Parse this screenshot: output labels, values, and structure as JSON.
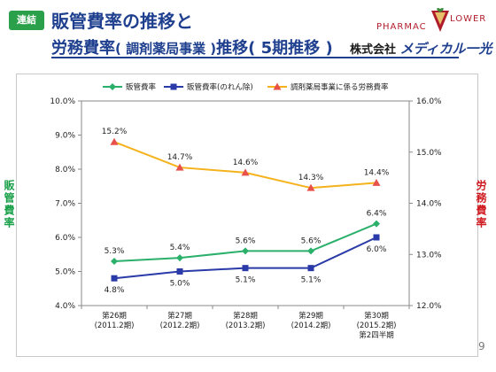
{
  "header": {
    "badge": "連結",
    "title_line1": "販管費率の推移と",
    "title_line2_a": "労務費率",
    "title_line2_b": "( 調剤薬局事業 )",
    "title_line2_c": "推移",
    "title_line2_d": "( 5期推移 )",
    "company_prefix": "株式会社",
    "company_name": "メディカル一光",
    "logo_text_a": "PHARMAC",
    "logo_text_b": "LOWER"
  },
  "side_labels": {
    "left": "販管費率",
    "right": "労務費率"
  },
  "page_number": "9",
  "chart_data": {
    "type": "line",
    "categories": [
      [
        "第26期",
        "(2011.2期)"
      ],
      [
        "第27期",
        "(2012.2期)"
      ],
      [
        "第28期",
        "(2013.2期)"
      ],
      [
        "第29期",
        "(2014.2期)"
      ],
      [
        "第30期",
        "(2015.2期)",
        "第2四半期"
      ]
    ],
    "left_axis": {
      "ylim": [
        4.0,
        10.0
      ],
      "ticks": [
        "4.0%",
        "5.0%",
        "6.0%",
        "7.0%",
        "8.0%",
        "9.0%",
        "10.0%"
      ]
    },
    "right_axis": {
      "ylim": [
        12.0,
        16.0
      ],
      "ticks": [
        "12.0%",
        "13.0%",
        "14.0%",
        "15.0%",
        "16.0%"
      ]
    },
    "legend_position": "top",
    "series": [
      {
        "name": "販管費率",
        "axis": "left",
        "color": "#2ab06a",
        "marker": "diamond",
        "values": [
          5.3,
          5.4,
          5.6,
          5.6,
          6.4
        ],
        "labels": [
          "5.3%",
          "5.4%",
          "5.6%",
          "5.6%",
          "6.4%"
        ],
        "label_position": "above"
      },
      {
        "name": "販管費率(のれん除)",
        "axis": "left",
        "color": "#2a3aa8",
        "marker": "square",
        "values": [
          4.8,
          5.0,
          5.1,
          5.1,
          6.0
        ],
        "labels": [
          "4.8%",
          "5.0%",
          "5.1%",
          "5.1%",
          "6.0%"
        ],
        "label_position": "below"
      },
      {
        "name": "調剤薬局事業に係る労務費率",
        "axis": "right",
        "color": "#f5b21c",
        "marker": "triangle",
        "marker_color": "#e8504a",
        "values": [
          15.2,
          14.7,
          14.6,
          14.3,
          14.4
        ],
        "labels": [
          "15.2%",
          "14.7%",
          "14.6%",
          "14.3%",
          "14.4%"
        ],
        "label_position": "above"
      }
    ]
  }
}
